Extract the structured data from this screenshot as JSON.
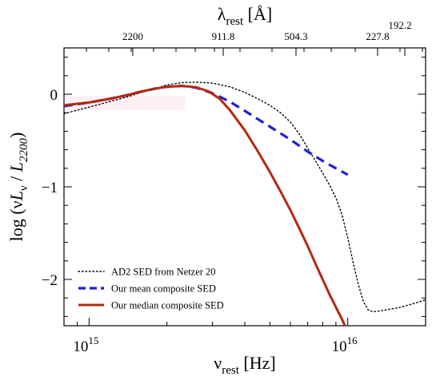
{
  "chart_data": {
    "type": "line",
    "x_axis": {
      "title": "ν",
      "title_sub": "rest",
      "title_unit": " [Hz]",
      "scale": "log",
      "range_hz": [
        800000000000000.0,
        2e+16
      ],
      "major_ticks": [
        {
          "value": 1000000000000000.0,
          "base": "10",
          "exp": "15"
        },
        {
          "value": 1e+16,
          "base": "10",
          "exp": "16"
        }
      ]
    },
    "top_axis": {
      "title": "λ",
      "title_sub": "rest",
      "title_unit": " [Å]",
      "ticks_angstrom": [
        "2200",
        "911.8",
        "504.3",
        "227.8",
        "192.2"
      ]
    },
    "y_axis": {
      "title_prefix": "log (ν",
      "title_L": "L",
      "title_nu_sub": "ν",
      "title_mid": " / ",
      "title_L2": "L",
      "title_sub2": "2200",
      "title_suffix": ")",
      "range": [
        -2.5,
        0.5
      ],
      "tick_labels": [
        {
          "value": 0,
          "label": "0"
        },
        {
          "value": -1,
          "label": "−1"
        },
        {
          "value": -2,
          "label": "−2"
        }
      ]
    },
    "series": [
      {
        "name": "AD2 SED from Netzer 20",
        "color": "#000000",
        "style": "dotted",
        "points": [
          [
            800000000000000.0,
            -0.21
          ],
          [
            1000000000000000.0,
            -0.14
          ],
          [
            1200000000000000.0,
            -0.08
          ],
          [
            1400000000000000.0,
            -0.03
          ],
          [
            1600000000000000.0,
            0.02
          ],
          [
            1800000000000000.0,
            0.06
          ],
          [
            2000000000000000.0,
            0.1
          ],
          [
            2300000000000000.0,
            0.125
          ],
          [
            2600000000000000.0,
            0.13
          ],
          [
            3000000000000000.0,
            0.12
          ],
          [
            3500000000000000.0,
            0.08
          ],
          [
            4000000000000000.0,
            0.02
          ],
          [
            4500000000000000.0,
            -0.05
          ],
          [
            5000000000000000.0,
            -0.12
          ],
          [
            5500000000000000.0,
            -0.2
          ],
          [
            6000000000000000.0,
            -0.3
          ],
          [
            6500000000000000.0,
            -0.43
          ],
          [
            7000000000000000.0,
            -0.58
          ],
          [
            7500000000000000.0,
            -0.72
          ],
          [
            8000000000000000.0,
            -0.85
          ],
          [
            8500000000000000.0,
            -0.98
          ],
          [
            9000000000000000.0,
            -1.12
          ],
          [
            9500000000000000.0,
            -1.3
          ],
          [
            1e+16,
            -1.55
          ],
          [
            1.05e+16,
            -1.82
          ],
          [
            1.1e+16,
            -2.06
          ],
          [
            1.15e+16,
            -2.24
          ],
          [
            1.2e+16,
            -2.33
          ],
          [
            1.26e+16,
            -2.35
          ],
          [
            1.4e+16,
            -2.33
          ],
          [
            1.6e+16,
            -2.3
          ],
          [
            1.8e+16,
            -2.26
          ],
          [
            2e+16,
            -2.22
          ]
        ]
      },
      {
        "name": "Our mean composite SED",
        "color": "#1f1fd6",
        "style": "dashed",
        "points": [
          [
            800000000000000.0,
            -0.13
          ],
          [
            1000000000000000.0,
            -0.09
          ],
          [
            1200000000000000.0,
            -0.05
          ],
          [
            1400000000000000.0,
            -0.01
          ],
          [
            1600000000000000.0,
            0.03
          ],
          [
            1800000000000000.0,
            0.06
          ],
          [
            2000000000000000.0,
            0.08
          ],
          [
            2300000000000000.0,
            0.09
          ],
          [
            2600000000000000.0,
            0.07
          ],
          [
            3000000000000000.0,
            0.01
          ],
          [
            3500000000000000.0,
            -0.08
          ],
          [
            4000000000000000.0,
            -0.18
          ],
          [
            4500000000000000.0,
            -0.27
          ],
          [
            5000000000000000.0,
            -0.35
          ],
          [
            6000000000000000.0,
            -0.49
          ],
          [
            7000000000000000.0,
            -0.62
          ],
          [
            8000000000000000.0,
            -0.72
          ],
          [
            9000000000000000.0,
            -0.8
          ],
          [
            1e+16,
            -0.87
          ]
        ]
      },
      {
        "name": "Our median composite SED",
        "color": "#b22a10",
        "style": "solid",
        "points": [
          [
            800000000000000.0,
            -0.12
          ],
          [
            1000000000000000.0,
            -0.09
          ],
          [
            1200000000000000.0,
            -0.05
          ],
          [
            1400000000000000.0,
            -0.01
          ],
          [
            1600000000000000.0,
            0.03
          ],
          [
            1800000000000000.0,
            0.06
          ],
          [
            2000000000000000.0,
            0.08
          ],
          [
            2300000000000000.0,
            0.09
          ],
          [
            2600000000000000.0,
            0.075
          ],
          [
            2900000000000000.0,
            0.03
          ],
          [
            3200000000000000.0,
            -0.05
          ],
          [
            3500000000000000.0,
            -0.17
          ],
          [
            4000000000000000.0,
            -0.39
          ],
          [
            4500000000000000.0,
            -0.62
          ],
          [
            5000000000000000.0,
            -0.84
          ],
          [
            5500000000000000.0,
            -1.05
          ],
          [
            6000000000000000.0,
            -1.25
          ],
          [
            6500000000000000.0,
            -1.45
          ],
          [
            7000000000000000.0,
            -1.64
          ],
          [
            7500000000000000.0,
            -1.83
          ],
          [
            8000000000000000.0,
            -2.0
          ],
          [
            8500000000000000.0,
            -2.16
          ],
          [
            9000000000000000.0,
            -2.3
          ],
          [
            9500000000000000.0,
            -2.43
          ],
          [
            9750000000000000.0,
            -2.5
          ]
        ]
      }
    ],
    "legend": {
      "position": "bottom-left"
    }
  }
}
